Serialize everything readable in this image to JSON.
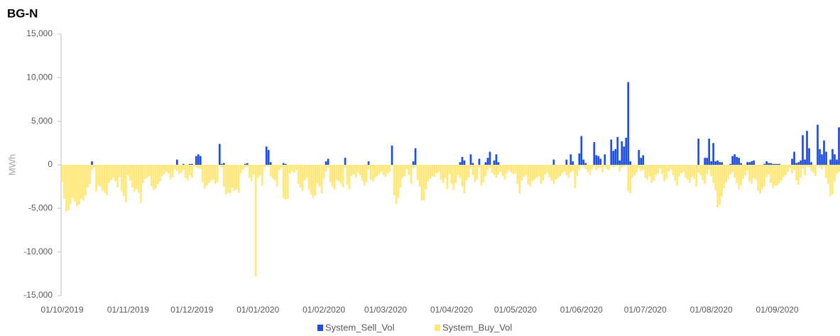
{
  "chart_data": {
    "type": "bar",
    "title": "BG-N",
    "ylabel": "MWh",
    "categories": [
      "01/10/2019",
      null,
      null,
      null,
      null,
      null,
      null,
      null,
      null,
      null,
      null,
      null,
      null,
      null,
      null,
      null,
      null,
      null,
      null,
      null,
      null,
      null,
      null,
      null,
      null,
      null,
      null,
      null,
      null,
      null,
      null,
      "01/11/2019",
      null,
      null,
      null,
      null,
      null,
      null,
      null,
      null,
      null,
      null,
      null,
      null,
      null,
      null,
      null,
      null,
      null,
      null,
      null,
      null,
      null,
      null,
      null,
      null,
      null,
      null,
      null,
      null,
      null,
      "01/12/2019",
      null,
      null,
      null,
      null,
      null,
      null,
      null,
      null,
      null,
      null,
      null,
      null,
      null,
      null,
      null,
      null,
      null,
      null,
      null,
      null,
      null,
      null,
      null,
      null,
      null,
      null,
      null,
      null,
      null,
      null,
      "01/01/2020",
      null,
      null,
      null,
      null,
      null,
      null,
      null,
      null,
      null,
      null,
      null,
      null,
      null,
      null,
      null,
      null,
      null,
      null,
      null,
      null,
      null,
      null,
      null,
      null,
      null,
      null,
      null,
      null,
      null,
      null,
      "01/02/2020",
      null,
      null,
      null,
      null,
      null,
      null,
      null,
      null,
      null,
      null,
      null,
      null,
      null,
      null,
      null,
      null,
      null,
      null,
      null,
      null,
      null,
      null,
      null,
      null,
      null,
      null,
      null,
      null,
      "01/03/2020",
      null,
      null,
      null,
      null,
      null,
      null,
      null,
      null,
      null,
      null,
      null,
      null,
      null,
      null,
      null,
      null,
      null,
      null,
      null,
      null,
      null,
      null,
      null,
      null,
      null,
      null,
      null,
      null,
      null,
      null,
      "01/04/2020",
      null,
      null,
      null,
      null,
      null,
      null,
      null,
      null,
      null,
      null,
      null,
      null,
      null,
      null,
      null,
      null,
      null,
      null,
      null,
      null,
      null,
      null,
      null,
      null,
      null,
      null,
      null,
      null,
      null,
      "01/05/2020",
      null,
      null,
      null,
      null,
      null,
      null,
      null,
      null,
      null,
      null,
      null,
      null,
      null,
      null,
      null,
      null,
      null,
      null,
      null,
      null,
      null,
      null,
      null,
      null,
      null,
      null,
      null,
      null,
      null,
      null,
      "01/06/2020",
      null,
      null,
      null,
      null,
      null,
      null,
      null,
      null,
      null,
      null,
      null,
      null,
      null,
      null,
      null,
      null,
      null,
      null,
      null,
      null,
      null,
      null,
      null,
      null,
      null,
      null,
      null,
      null,
      null,
      "01/07/2020",
      null,
      null,
      null,
      null,
      null,
      null,
      null,
      null,
      null,
      null,
      null,
      null,
      null,
      null,
      null,
      null,
      null,
      null,
      null,
      null,
      null,
      null,
      null,
      null,
      null,
      null,
      null,
      null,
      null,
      null,
      "01/08/2020",
      null,
      null,
      null,
      null,
      null,
      null,
      null,
      null,
      null,
      null,
      null,
      null,
      null,
      null,
      null,
      null,
      null,
      null,
      null,
      null,
      null,
      null,
      null,
      null,
      null,
      null,
      null,
      null,
      null,
      null,
      "01/09/2020",
      null,
      null,
      null,
      null,
      null,
      null,
      null,
      null,
      null,
      null,
      null,
      null,
      null,
      null,
      null,
      null,
      null,
      null,
      null,
      null,
      null,
      null,
      null,
      null,
      null,
      null,
      null,
      null,
      null
    ],
    "series": [
      {
        "name": "System_Sell_Vol",
        "color": "#1f4fe0",
        "values": [
          0,
          0,
          0,
          0,
          0,
          0,
          0,
          0,
          0,
          0,
          0,
          0,
          0,
          0,
          400,
          0,
          0,
          0,
          0,
          0,
          0,
          0,
          0,
          0,
          0,
          0,
          0,
          0,
          0,
          0,
          0,
          0,
          0,
          0,
          0,
          0,
          0,
          0,
          0,
          0,
          0,
          0,
          0,
          0,
          0,
          0,
          0,
          0,
          0,
          0,
          0,
          0,
          0,
          0,
          600,
          0,
          0,
          100,
          0,
          0,
          100,
          100,
          0,
          1000,
          1200,
          1000,
          0,
          0,
          0,
          0,
          0,
          0,
          0,
          0,
          2400,
          100,
          200,
          0,
          0,
          0,
          0,
          0,
          0,
          0,
          0,
          0,
          100,
          200,
          0,
          0,
          0,
          0,
          0,
          0,
          0,
          0,
          2100,
          1700,
          300,
          0,
          0,
          0,
          0,
          0,
          200,
          100,
          0,
          0,
          0,
          0,
          0,
          0,
          0,
          0,
          0,
          0,
          0,
          0,
          0,
          0,
          0,
          0,
          0,
          0,
          400,
          700,
          0,
          0,
          0,
          0,
          0,
          0,
          0,
          800,
          0,
          0,
          0,
          0,
          0,
          0,
          0,
          0,
          0,
          0,
          400,
          0,
          0,
          0,
          0,
          0,
          0,
          0,
          0,
          0,
          0,
          2200,
          0,
          0,
          0,
          0,
          0,
          0,
          0,
          0,
          0,
          400,
          1900,
          0,
          0,
          0,
          0,
          0,
          0,
          0,
          0,
          0,
          0,
          0,
          0,
          0,
          0,
          0,
          0,
          0,
          0,
          0,
          0,
          300,
          900,
          500,
          0,
          0,
          1200,
          200,
          0,
          0,
          700,
          0,
          0,
          300,
          800,
          1500,
          0,
          500,
          1200,
          300,
          0,
          0,
          0,
          0,
          0,
          0,
          0,
          0,
          0,
          0,
          0,
          0,
          0,
          0,
          0,
          0,
          0,
          0,
          0,
          0,
          0,
          0,
          0,
          0,
          0,
          600,
          0,
          0,
          0,
          0,
          0,
          600,
          0,
          1200,
          400,
          0,
          0,
          1300,
          3300,
          600,
          200,
          0,
          0,
          0,
          2600,
          1100,
          1000,
          700,
          0,
          1200,
          0,
          0,
          2900,
          1600,
          1800,
          3200,
          500,
          2700,
          2100,
          3100,
          9500,
          400,
          0,
          0,
          0,
          1700,
          800,
          1100,
          0,
          0,
          0,
          0,
          0,
          0,
          0,
          0,
          0,
          0,
          0,
          0,
          0,
          0,
          0,
          0,
          0,
          0,
          0,
          0,
          0,
          0,
          0,
          0,
          0,
          3000,
          0,
          0,
          800,
          800,
          3000,
          400,
          2500,
          400,
          500,
          300,
          300,
          0,
          0,
          0,
          100,
          1000,
          1200,
          900,
          800,
          200,
          0,
          0,
          300,
          300,
          400,
          500,
          0,
          0,
          0,
          0,
          100,
          400,
          200,
          200,
          100,
          100,
          100,
          100,
          0,
          0,
          0,
          0,
          0,
          700,
          1500,
          200,
          300,
          500,
          3400,
          600,
          3900,
          1900,
          300,
          0,
          0,
          4600,
          1800,
          1200,
          2800,
          1500,
          0,
          600,
          1800,
          1200,
          600,
          4300
        ]
      },
      {
        "name": "System_Buy_Vol",
        "color": "#ffe87a",
        "values": [
          -2000,
          -3900,
          -5400,
          -5200,
          -4500,
          -3800,
          -4200,
          -4800,
          -4600,
          -3900,
          -4100,
          -3500,
          -2600,
          -2200,
          -600,
          -300,
          -3100,
          -2400,
          -2500,
          -3000,
          -3200,
          -3500,
          -2100,
          -1800,
          -1500,
          -1900,
          -2600,
          -1400,
          -3100,
          -3600,
          -4300,
          -1200,
          -1800,
          -2600,
          -3100,
          -2800,
          -3200,
          -4400,
          -2100,
          -1600,
          -1500,
          -1300,
          -2500,
          -2900,
          -2700,
          -2200,
          -1900,
          -1300,
          -1100,
          -800,
          -1000,
          -1700,
          -1400,
          -500,
          -700,
          -1100,
          -900,
          -600,
          -1500,
          -1800,
          -1200,
          -1500,
          -200,
          -300,
          -400,
          -500,
          -2000,
          -2700,
          -2400,
          -2100,
          -1800,
          -1700,
          -2200,
          -2000,
          -100,
          -300,
          -2500,
          -3400,
          -3200,
          -3300,
          -2600,
          -3000,
          -2800,
          -3200,
          -1000,
          -600,
          -300,
          -200,
          -1500,
          -1900,
          -1100,
          -12800,
          -1500,
          -1200,
          -2400,
          -300,
          -100,
          -200,
          -1300,
          -1600,
          -1800,
          -2500,
          -600,
          -400,
          -3800,
          -4000,
          -3900,
          -1000,
          -700,
          -900,
          -600,
          -2200,
          -2600,
          -3000,
          -1800,
          -1500,
          -2800,
          -3400,
          -3800,
          -3500,
          -2200,
          -2500,
          -3300,
          -1600,
          -800,
          -300,
          -2000,
          -2500,
          -2800,
          -1700,
          -1900,
          -2200,
          -2600,
          -300,
          -2300,
          -2800,
          -1300,
          -1100,
          -1500,
          -900,
          -1200,
          -1800,
          -2400,
          -2000,
          -500,
          -1700,
          -1900,
          -1500,
          -1300,
          -1100,
          -800,
          -1200,
          -1400,
          -1000,
          -800,
          -100,
          -3500,
          -4500,
          -3800,
          -2600,
          -1500,
          -1300,
          -500,
          -1200,
          -2200,
          -400,
          -200,
          -1700,
          -2500,
          -4100,
          -4100,
          -2800,
          -1900,
          -1600,
          -1300,
          -1400,
          -1000,
          -800,
          -1700,
          -2100,
          -1500,
          -2800,
          -1100,
          -2200,
          -2900,
          -2100,
          -1200,
          -1500,
          -2500,
          -3300,
          -1800,
          -1500,
          -400,
          -1200,
          -2000,
          -1700,
          -300,
          -2400,
          -2000,
          -1300,
          -600,
          -300,
          -900,
          -1200,
          -1500,
          -1100,
          -800,
          -1300,
          -1700,
          -1000,
          -600,
          -900,
          -1100,
          -1000,
          -2200,
          -3300,
          -1800,
          -1400,
          -1200,
          -2300,
          -2500,
          -1900,
          -1700,
          -1500,
          -1300,
          -2200,
          -1800,
          -1100,
          -900,
          -1400,
          -1800,
          -2200,
          -1700,
          -1500,
          -1300,
          -1000,
          -800,
          -1200,
          -1500,
          -900,
          -700,
          -2700,
          -1300,
          -600,
          -100,
          -200,
          -500,
          -800,
          -1200,
          -500,
          -200,
          -600,
          -400,
          -300,
          -900,
          -200,
          -500,
          -600,
          -100,
          -300,
          -200,
          -100,
          -800,
          -300,
          -200,
          -100,
          -3000,
          -3300,
          -1500,
          -1200,
          -900,
          -400,
          -700,
          -600,
          -1500,
          -1700,
          -1300,
          -2100,
          -1800,
          -1200,
          -1000,
          -400,
          -1100,
          -1900,
          -1600,
          -800,
          -500,
          -1200,
          -1800,
          -2400,
          -1300,
          -1000,
          -800,
          -1500,
          -1700,
          -2100,
          -1400,
          -1600,
          -2500,
          -900,
          -1200,
          -1800,
          -2200,
          -1100,
          -600,
          -1300,
          -2100,
          -2900,
          -4900,
          -4600,
          -3700,
          -2700,
          -2000,
          -1600,
          -1100,
          -800,
          -1500,
          -2100,
          -2800,
          -2400,
          -1600,
          -1200,
          -700,
          -1900,
          -2200,
          -1500,
          -1700,
          -3000,
          -3300,
          -2800,
          -2500,
          -1400,
          -1100,
          -2100,
          -2700,
          -2400,
          -2400,
          -2100,
          -1800,
          -1400,
          -1200,
          -800,
          -400,
          -1000,
          -600,
          -1800,
          -2300,
          -1500,
          -400,
          -1200,
          -200,
          -300,
          -700,
          -900,
          -1300,
          -100,
          -300,
          -500,
          -200,
          -1500,
          -2200,
          -3600,
          -3400,
          -1900,
          -1000,
          -800
        ]
      }
    ],
    "ylim": [
      -15000,
      15000
    ],
    "yticks": [
      {
        "value": -15000,
        "label": "-15,000"
      },
      {
        "value": -10000,
        "label": "-10,000"
      },
      {
        "value": -5000,
        "label": "-5,000"
      },
      0,
      {
        "value": 5000,
        "label": "5,000"
      },
      {
        "value": 10000,
        "label": "10,000"
      },
      {
        "value": 15000,
        "label": "15,000"
      }
    ],
    "grid": false,
    "legend": "bottom"
  }
}
